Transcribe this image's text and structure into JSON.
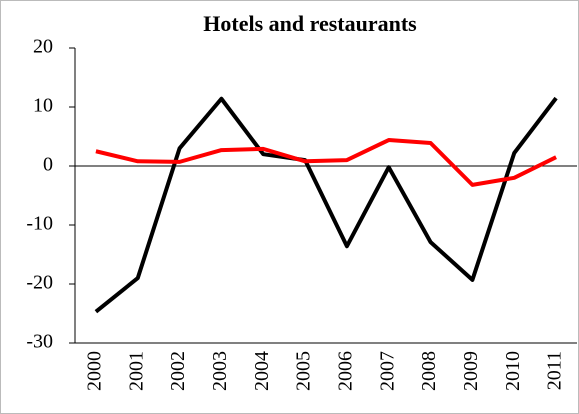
{
  "chart_data": {
    "type": "line",
    "title": "Hotels and restaurants",
    "categories": [
      "2000",
      "2001",
      "2002",
      "2003",
      "2004",
      "2005",
      "2006",
      "2007",
      "2008",
      "2009",
      "2010",
      "2011"
    ],
    "series": [
      {
        "color": "#000000",
        "values": [
          -24.7,
          -19,
          3,
          11.4,
          2,
          1,
          -13.6,
          -0.2,
          -12.9,
          -19.3,
          2.2,
          11.5
        ]
      },
      {
        "color": "#ff0000",
        "values": [
          2.5,
          0.8,
          0.7,
          2.7,
          2.9,
          0.8,
          1.0,
          4.4,
          3.9,
          -3.2,
          -2,
          1.5
        ]
      }
    ],
    "ylim": [
      -30,
      20
    ],
    "yticks": [
      -30,
      -20,
      -10,
      0,
      10,
      20
    ]
  }
}
